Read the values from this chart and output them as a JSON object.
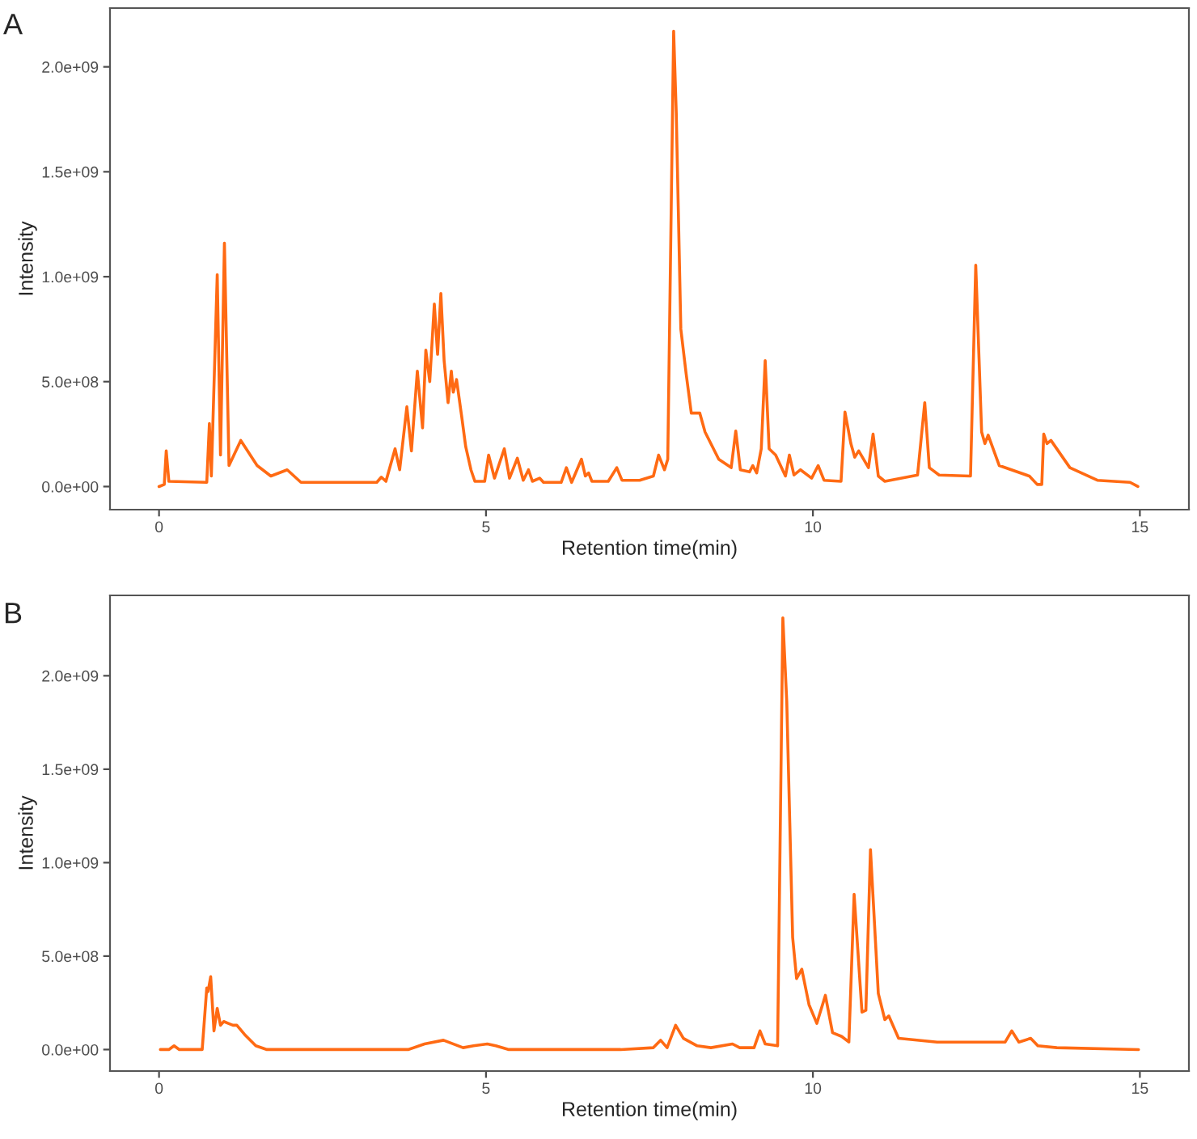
{
  "chart_data": [
    {
      "type": "line",
      "annotations": [
        "A"
      ],
      "xlabel": "Retention time(min)",
      "ylabel": "Intensity",
      "x": [
        0,
        0.08,
        0.11,
        0.15,
        0.73,
        0.77,
        0.8,
        0.89,
        0.94,
        1.0,
        1.07,
        1.25,
        1.5,
        1.71,
        1.96,
        2.17,
        3.33,
        3.4,
        3.47,
        3.61,
        3.68,
        3.79,
        3.86,
        3.95,
        4.03,
        4.08,
        4.14,
        4.21,
        4.26,
        4.31,
        4.36,
        4.42,
        4.47,
        4.5,
        4.55,
        4.63,
        4.69,
        4.77,
        4.83,
        4.98,
        5.04,
        5.13,
        5.28,
        5.36,
        5.48,
        5.57,
        5.65,
        5.71,
        5.82,
        5.88,
        6.15,
        6.23,
        6.31,
        6.46,
        6.52,
        6.57,
        6.62,
        6.87,
        7.0,
        7.08,
        7.35,
        7.56,
        7.64,
        7.73,
        7.78,
        7.87,
        7.91,
        7.98,
        8.06,
        8.14,
        8.27,
        8.35,
        8.56,
        8.75,
        8.82,
        8.89,
        9.03,
        9.08,
        9.14,
        9.21,
        9.27,
        9.33,
        9.43,
        9.58,
        9.64,
        9.71,
        9.81,
        9.98,
        10.08,
        10.17,
        10.43,
        10.49,
        10.58,
        10.64,
        10.7,
        10.85,
        10.92,
        11.0,
        11.1,
        11.6,
        11.71,
        11.78,
        11.93,
        12.41,
        12.49,
        12.58,
        12.63,
        12.68,
        12.85,
        13.31,
        13.43,
        13.5,
        13.53,
        13.58,
        13.64,
        13.93,
        14.35,
        14.85,
        14.97
      ],
      "series": [
        {
          "color": "#ff6a13",
          "values": [
            0,
            10000000.0,
            170000000.0,
            25000000.0,
            20000000.0,
            300000000.0,
            50000000.0,
            1010000000.0,
            150000000.0,
            1160000000.0,
            100000000.0,
            220000000.0,
            100000000.0,
            50000000.0,
            80000000.0,
            20000000.0,
            20000000.0,
            45000000.0,
            25000000.0,
            180000000.0,
            80000000.0,
            380000000.0,
            170000000.0,
            550000000.0,
            280000000.0,
            650000000.0,
            500000000.0,
            870000000.0,
            630000000.0,
            920000000.0,
            600000000.0,
            400000000.0,
            550000000.0,
            450000000.0,
            510000000.0,
            330000000.0,
            190000000.0,
            80000000.0,
            25000000.0,
            25000000.0,
            150000000.0,
            40000000.0,
            180000000.0,
            40000000.0,
            135000000.0,
            30000000.0,
            80000000.0,
            25000000.0,
            40000000.0,
            20000000.0,
            20000000.0,
            90000000.0,
            20000000.0,
            130000000.0,
            50000000.0,
            65000000.0,
            25000000.0,
            25000000.0,
            90000000.0,
            30000000.0,
            30000000.0,
            50000000.0,
            150000000.0,
            80000000.0,
            130000000.0,
            2170000000.0,
            1780000000.0,
            750000000.0,
            540000000.0,
            350000000.0,
            350000000.0,
            260000000.0,
            130000000.0,
            90000000.0,
            265000000.0,
            80000000.0,
            70000000.0,
            100000000.0,
            65000000.0,
            180000000.0,
            600000000.0,
            180000000.0,
            150000000.0,
            50000000.0,
            150000000.0,
            55000000.0,
            80000000.0,
            40000000.0,
            100000000.0,
            30000000.0,
            25000000.0,
            355000000.0,
            205000000.0,
            140000000.0,
            170000000.0,
            90000000.0,
            250000000.0,
            50000000.0,
            25000000.0,
            55000000.0,
            400000000.0,
            90000000.0,
            55000000.0,
            50000000.0,
            1055000000.0,
            260000000.0,
            205000000.0,
            245000000.0,
            100000000.0,
            50000000.0,
            10000000.0,
            10000000.0,
            250000000.0,
            205000000.0,
            220000000.0,
            90000000.0,
            30000000.0,
            20000000.0,
            0
          ]
        }
      ],
      "xlim": [
        -0.75,
        15.75
      ],
      "xticks": [
        0,
        5,
        10,
        15
      ],
      "ylim": [
        -110000000.0,
        2280000000.0
      ],
      "yticks": [
        {
          "value": 0,
          "label": "0.0e+00"
        },
        {
          "value": 500000000.0,
          "label": "5.0e+08"
        },
        {
          "value": 1000000000.0,
          "label": "1.0e+09"
        },
        {
          "value": 1500000000.0,
          "label": "1.5e+09"
        },
        {
          "value": 2000000000.0,
          "label": "2.0e+09"
        }
      ]
    },
    {
      "type": "line",
      "annotations": [
        "B"
      ],
      "xlabel": "Retention time(min)",
      "ylabel": "Intensity",
      "x": [
        0.02,
        0.15,
        0.23,
        0.31,
        0.66,
        0.73,
        0.75,
        0.79,
        0.84,
        0.89,
        0.94,
        0.99,
        1.06,
        1.13,
        1.19,
        1.31,
        1.48,
        1.65,
        3.81,
        4.06,
        4.35,
        4.65,
        4.81,
        5.02,
        5.15,
        5.35,
        7.06,
        7.56,
        7.67,
        7.77,
        7.9,
        8.02,
        8.23,
        8.44,
        8.77,
        8.88,
        9.1,
        9.19,
        9.27,
        9.46,
        9.54,
        9.6,
        9.69,
        9.75,
        9.83,
        9.94,
        10.06,
        10.19,
        10.3,
        10.44,
        10.55,
        10.63,
        10.75,
        10.81,
        10.88,
        11.0,
        11.1,
        11.16,
        11.31,
        11.9,
        12.48,
        12.94,
        13.04,
        13.15,
        13.33,
        13.44,
        13.73,
        14.98
      ],
      "series": [
        {
          "color": "#ff6a13",
          "values": [
            0,
            0,
            20000000.0,
            0,
            0,
            330000000.0,
            310000000.0,
            390000000.0,
            100000000.0,
            220000000.0,
            130000000.0,
            150000000.0,
            140000000.0,
            130000000.0,
            130000000.0,
            80000000.0,
            20000000.0,
            0,
            0,
            30000000.0,
            50000000.0,
            10000000.0,
            20000000.0,
            30000000.0,
            20000000.0,
            0,
            0,
            10000000.0,
            50000000.0,
            10000000.0,
            130000000.0,
            60000000.0,
            20000000.0,
            10000000.0,
            30000000.0,
            10000000.0,
            10000000.0,
            100000000.0,
            30000000.0,
            20000000.0,
            2310000000.0,
            1860000000.0,
            600000000.0,
            380000000.0,
            430000000.0,
            240000000.0,
            140000000.0,
            290000000.0,
            90000000.0,
            70000000.0,
            40000000.0,
            830000000.0,
            200000000.0,
            210000000.0,
            1070000000.0,
            300000000.0,
            160000000.0,
            180000000.0,
            60000000.0,
            40000000.0,
            40000000.0,
            40000000.0,
            100000000.0,
            40000000.0,
            60000000.0,
            20000000.0,
            10000000.0,
            0
          ]
        }
      ],
      "xlim": [
        -0.75,
        15.75
      ],
      "xticks": [
        0,
        5,
        10,
        15
      ],
      "ylim": [
        -115000000.0,
        2430000000.0
      ],
      "yticks": [
        {
          "value": 0,
          "label": "0.0e+00"
        },
        {
          "value": 500000000.0,
          "label": "5.0e+08"
        },
        {
          "value": 1000000000.0,
          "label": "1.0e+09"
        },
        {
          "value": 1500000000.0,
          "label": "1.5e+09"
        },
        {
          "value": 2000000000.0,
          "label": "2.0e+09"
        }
      ]
    }
  ]
}
